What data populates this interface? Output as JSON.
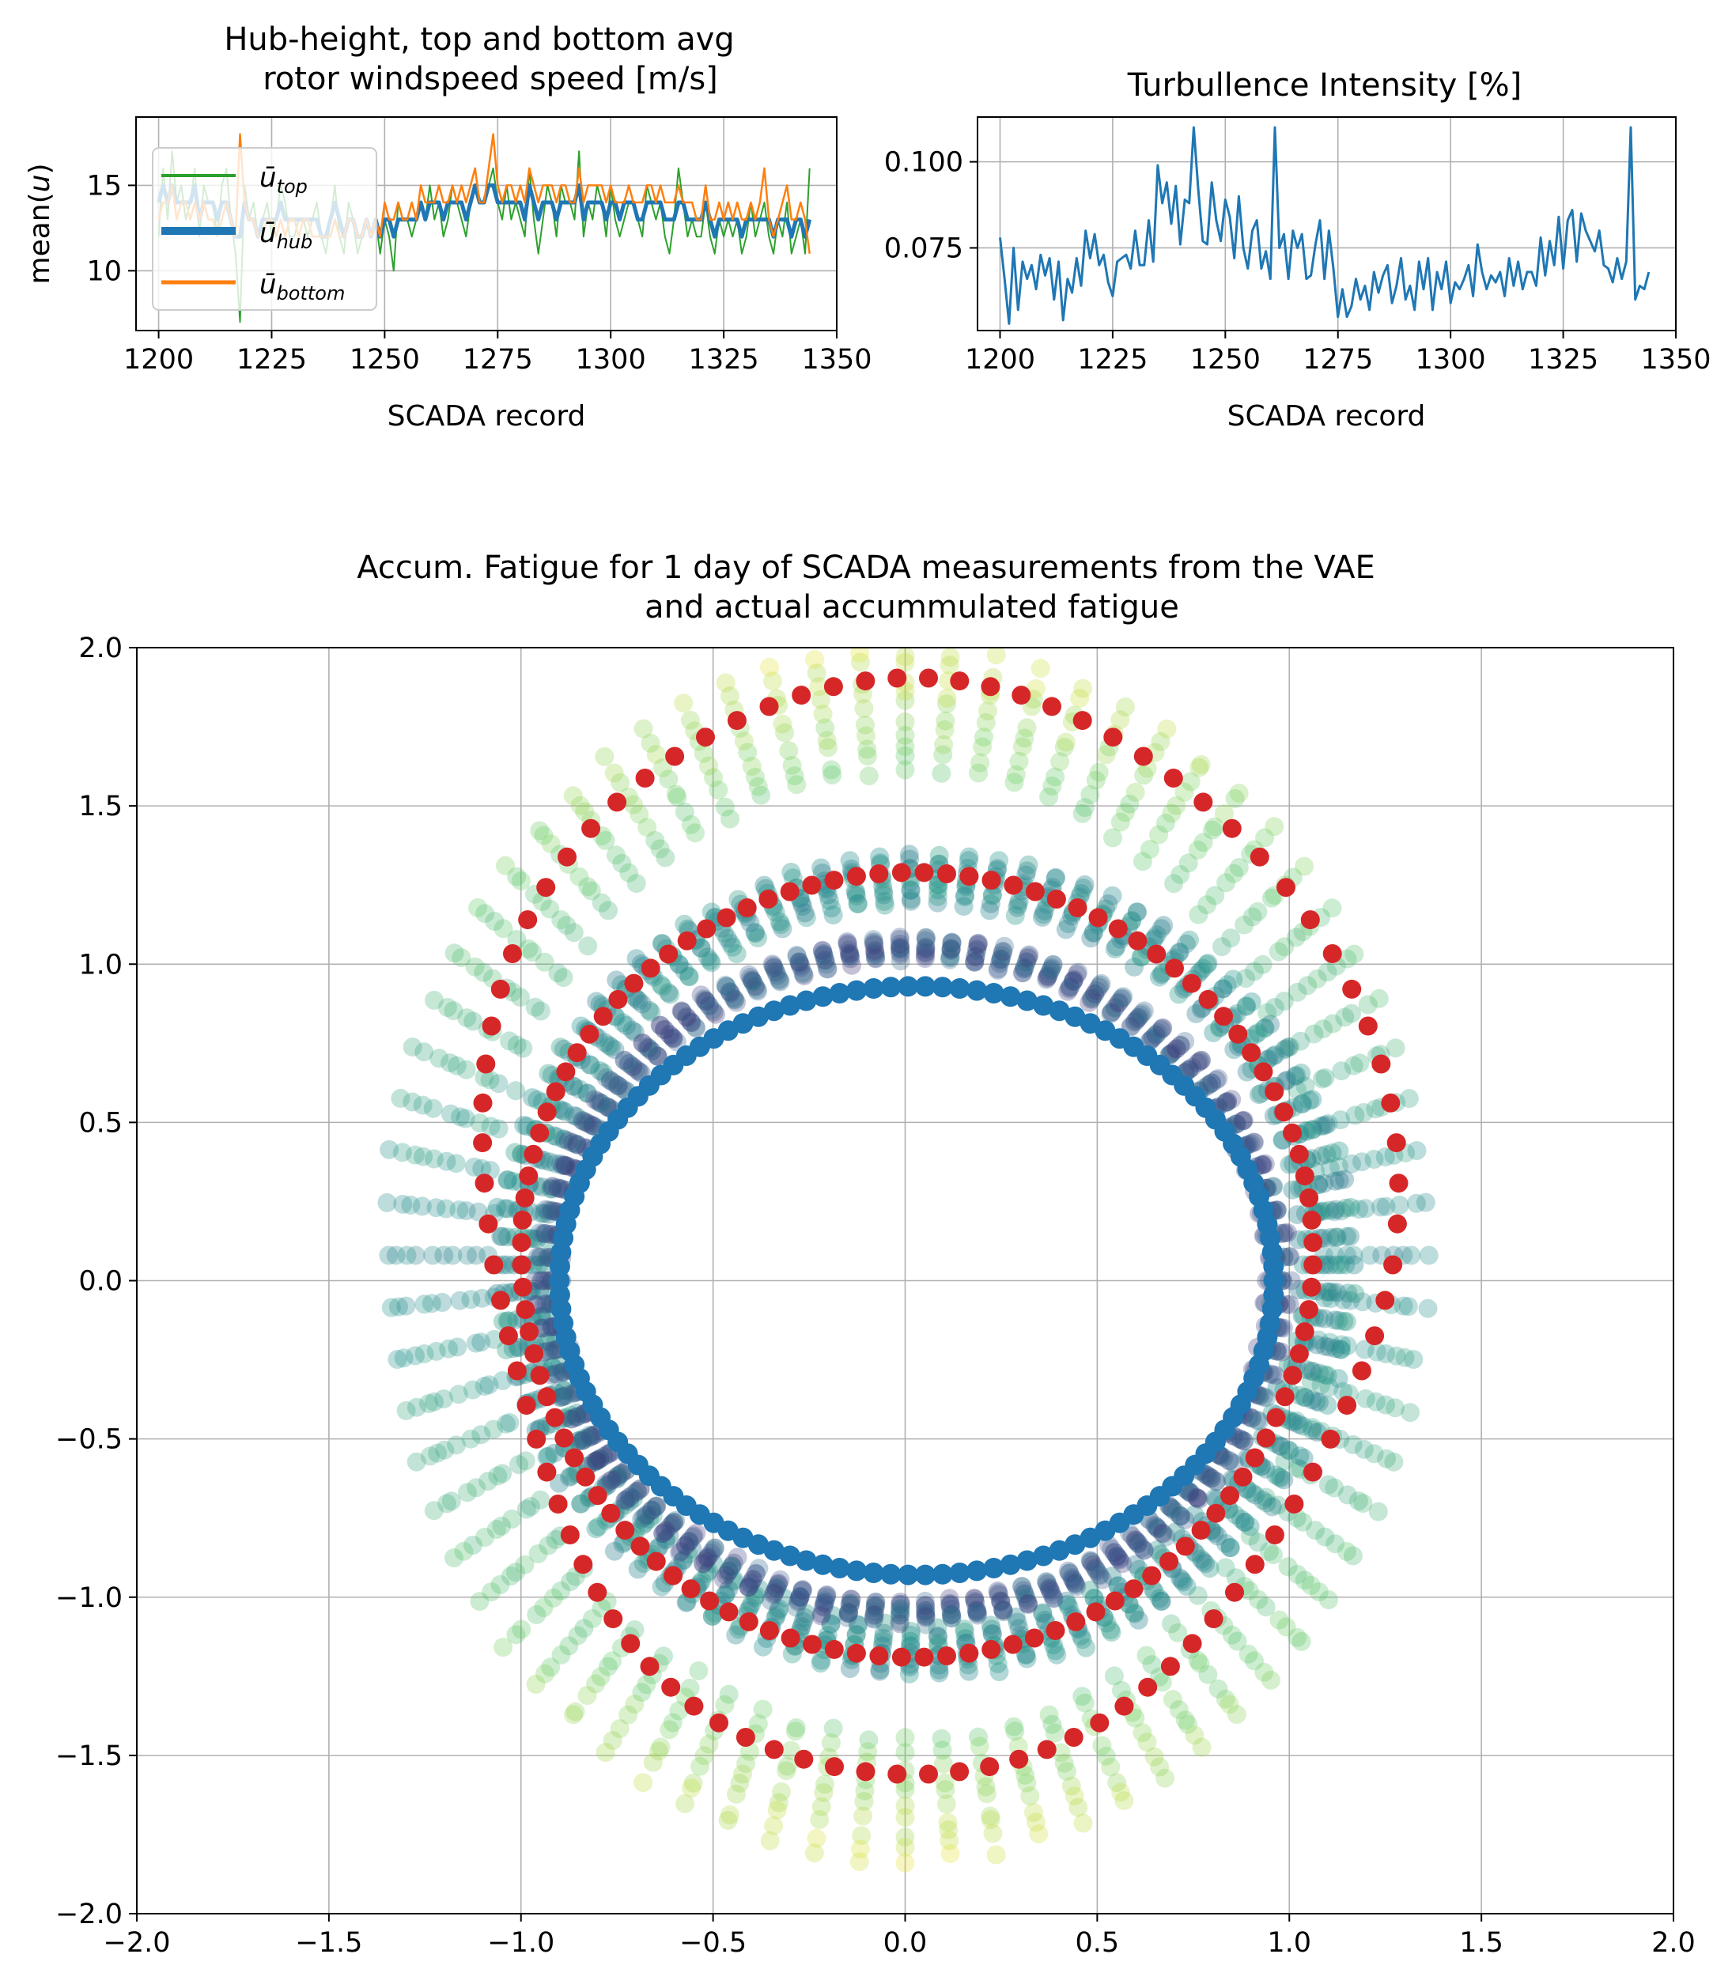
{
  "chart_data": [
    {
      "type": "line",
      "title": "Hub-height, top and bottom avg\nrotor windspeed speed [m/s]",
      "xlabel": "SCADA record",
      "ylabel": "mean(u)",
      "xlim": [
        1195,
        1350
      ],
      "ylim": [
        6.5,
        19
      ],
      "xticks": [
        1200,
        1225,
        1250,
        1275,
        1300,
        1325,
        1350
      ],
      "yticks": [
        10,
        15
      ],
      "grid": true,
      "legend": "upper-left",
      "x_start": 1200,
      "x_end": 1344,
      "series": [
        {
          "name": "ū_top",
          "color": "#2ca02c",
          "linewidth": 2,
          "values": [
            12,
            16,
            13,
            17,
            14,
            15,
            13,
            14,
            16,
            12,
            15,
            14,
            14,
            12,
            15,
            16,
            13,
            11,
            7,
            15,
            13,
            14,
            12,
            13,
            14,
            12,
            13,
            15,
            14,
            12,
            12,
            13,
            13,
            12,
            13,
            14,
            12,
            11,
            13,
            15,
            12,
            11,
            14,
            13,
            11,
            12,
            13,
            12,
            13,
            11,
            13,
            12,
            10,
            14,
            13,
            13,
            12,
            13,
            14,
            13,
            15,
            13,
            14,
            12,
            13,
            15,
            14,
            13,
            12,
            14,
            15,
            14,
            14,
            15,
            16,
            14,
            13,
            15,
            13,
            14,
            13,
            12,
            16,
            13,
            11,
            13,
            15,
            14,
            12,
            15,
            14,
            14,
            13,
            17,
            12,
            14,
            13,
            15,
            14,
            12,
            15,
            13,
            12,
            13,
            14,
            14,
            13,
            12,
            15,
            14,
            13,
            14,
            12,
            11,
            13,
            16,
            14,
            12,
            13,
            12,
            12,
            14,
            12,
            11,
            13,
            12,
            13,
            12,
            13,
            11,
            12,
            14,
            12,
            13,
            14,
            12,
            11,
            13,
            12,
            14,
            11,
            12,
            13,
            11,
            16
          ]
        },
        {
          "name": "ū_hub",
          "color": "#1f77b4",
          "linewidth": 5,
          "values": [
            14,
            15,
            14,
            15,
            14,
            14,
            14,
            14,
            15,
            13,
            14,
            14,
            14,
            13,
            14,
            14,
            13,
            12,
            12,
            14,
            13,
            13,
            12,
            13,
            13,
            13,
            13,
            14,
            13,
            13,
            13,
            13,
            13,
            13,
            13,
            13,
            12,
            12,
            13,
            14,
            13,
            12,
            13,
            13,
            12,
            12,
            13,
            12,
            13,
            12,
            13,
            13,
            12,
            13,
            13,
            13,
            13,
            13,
            14,
            13,
            14,
            14,
            14,
            13,
            14,
            14,
            14,
            14,
            13,
            14,
            15,
            14,
            14,
            15,
            15,
            14,
            14,
            14,
            14,
            14,
            14,
            13,
            15,
            14,
            13,
            14,
            14,
            14,
            13,
            14,
            14,
            14,
            14,
            15,
            13,
            14,
            14,
            14,
            14,
            13,
            14,
            14,
            13,
            14,
            14,
            14,
            13,
            13,
            14,
            14,
            14,
            14,
            13,
            13,
            13,
            14,
            14,
            13,
            13,
            13,
            13,
            14,
            13,
            12,
            13,
            13,
            13,
            13,
            13,
            12,
            13,
            13,
            13,
            13,
            13,
            13,
            12,
            13,
            13,
            13,
            12,
            13,
            13,
            12,
            13
          ]
        },
        {
          "name": "ū_bottom",
          "color": "#ff7f0e",
          "linewidth": 2.5,
          "values": [
            13,
            14,
            14,
            15,
            13,
            14,
            14,
            13,
            14,
            13,
            14,
            13,
            13,
            12,
            13,
            14,
            13,
            12,
            18,
            14,
            13,
            13,
            12,
            12,
            13,
            13,
            12,
            13,
            12,
            13,
            13,
            12,
            13,
            13,
            12,
            12,
            12,
            12,
            12,
            13,
            12,
            12,
            13,
            13,
            12,
            12,
            13,
            12,
            13,
            12,
            14,
            13,
            13,
            14,
            13,
            13,
            14,
            13,
            15,
            14,
            14,
            14,
            15,
            14,
            14,
            15,
            14,
            15,
            14,
            15,
            16,
            14,
            14,
            16,
            18,
            15,
            14,
            15,
            15,
            14,
            15,
            14,
            16,
            15,
            14,
            15,
            15,
            15,
            14,
            15,
            15,
            14,
            14,
            16,
            14,
            15,
            15,
            15,
            15,
            14,
            15,
            14,
            14,
            14,
            15,
            14,
            14,
            14,
            15,
            15,
            14,
            15,
            14,
            14,
            14,
            15,
            14,
            14,
            14,
            13,
            13,
            15,
            13,
            13,
            14,
            13,
            14,
            13,
            14,
            13,
            13,
            14,
            13,
            14,
            16,
            13,
            12,
            13,
            14,
            15,
            13,
            13,
            14,
            13,
            11
          ]
        }
      ]
    },
    {
      "type": "line",
      "title": "Turbullence Intensity [%]",
      "xlabel": "SCADA record",
      "ylabel": "",
      "xlim": [
        1195,
        1350
      ],
      "ylim": [
        0.051,
        0.113
      ],
      "xticks": [
        1200,
        1225,
        1250,
        1275,
        1300,
        1325,
        1350
      ],
      "yticks": [
        0.075,
        0.1
      ],
      "grid": true,
      "x_start": 1200,
      "x_end": 1344,
      "series": [
        {
          "color": "#1f77b4",
          "values": [
            0.078,
            0.066,
            0.053,
            0.075,
            0.057,
            0.071,
            0.066,
            0.07,
            0.063,
            0.073,
            0.067,
            0.072,
            0.06,
            0.071,
            0.054,
            0.066,
            0.062,
            0.072,
            0.064,
            0.08,
            0.072,
            0.079,
            0.07,
            0.073,
            0.065,
            0.061,
            0.071,
            0.072,
            0.073,
            0.069,
            0.08,
            0.07,
            0.07,
            0.083,
            0.071,
            0.099,
            0.088,
            0.094,
            0.082,
            0.093,
            0.076,
            0.089,
            0.088,
            0.11,
            0.092,
            0.077,
            0.076,
            0.094,
            0.083,
            0.077,
            0.089,
            0.084,
            0.072,
            0.09,
            0.075,
            0.069,
            0.08,
            0.083,
            0.069,
            0.074,
            0.066,
            0.11,
            0.075,
            0.079,
            0.066,
            0.08,
            0.075,
            0.079,
            0.066,
            0.067,
            0.076,
            0.083,
            0.066,
            0.08,
            0.069,
            0.055,
            0.063,
            0.055,
            0.058,
            0.066,
            0.06,
            0.064,
            0.057,
            0.068,
            0.062,
            0.067,
            0.07,
            0.059,
            0.064,
            0.072,
            0.06,
            0.064,
            0.057,
            0.071,
            0.063,
            0.072,
            0.057,
            0.068,
            0.063,
            0.071,
            0.059,
            0.065,
            0.063,
            0.066,
            0.07,
            0.061,
            0.076,
            0.068,
            0.063,
            0.067,
            0.065,
            0.068,
            0.061,
            0.072,
            0.064,
            0.071,
            0.063,
            0.068,
            0.068,
            0.064,
            0.078,
            0.067,
            0.077,
            0.07,
            0.084,
            0.069,
            0.083,
            0.086,
            0.071,
            0.085,
            0.08,
            0.077,
            0.074,
            0.08,
            0.07,
            0.069,
            0.065,
            0.072,
            0.066,
            0.071,
            0.11,
            0.06,
            0.064,
            0.063,
            0.068
          ]
        }
      ]
    },
    {
      "type": "scatter",
      "title": "Accum. Fatigue for 1 day of SCADA measurements from the VAE\nand actual accummulated fatigue",
      "xlabel": "",
      "ylabel": "",
      "xlim": [
        -2.0,
        2.0
      ],
      "ylim": [
        -2.0,
        2.0
      ],
      "xticks": [
        -2.0,
        -1.5,
        -1.0,
        -0.5,
        0.0,
        0.5,
        1.0,
        1.5,
        2.0
      ],
      "yticks": [
        -2.0,
        -1.5,
        -1.0,
        -0.5,
        0.0,
        0.5,
        1.0,
        1.5,
        2.0
      ],
      "tick_labels": [
        "−2.0",
        "−1.5",
        "−1.0",
        "−0.5",
        "0.0",
        "0.5",
        "1.0",
        "1.5",
        "2.0"
      ],
      "grid": true,
      "rings": [
        {
          "role": "vae-samples-outer",
          "cx": 0.0,
          "cy": 0.08,
          "rx": 1.22,
          "ry": 1.72,
          "n": 72,
          "spread": 0.22,
          "colormap": "viridis",
          "alpha": 0.3
        },
        {
          "role": "vae-samples-mid",
          "cx": 0.05,
          "cy": 0.05,
          "rx": 1.05,
          "ry": 1.22,
          "n": 90,
          "spread": 0.12,
          "colormap": "viridis",
          "alpha": 0.35
        },
        {
          "role": "vae-samples-inner",
          "cx": 0.02,
          "cy": 0.0,
          "rx": 0.95,
          "ry": 1.05,
          "n": 90,
          "spread": 0.06,
          "colormap": "viridis-dark",
          "alpha": 0.3
        }
      ],
      "red_series": [
        {
          "color": "#d62728",
          "cx": 0.02,
          "cy": 0.05,
          "rx": 1.17,
          "ry": 1.75,
          "wobble": 0.12,
          "n": 90
        },
        {
          "color": "#d62728",
          "cx": 0.02,
          "cy": 0.05,
          "rx": 1.03,
          "ry": 1.24,
          "wobble": 0.02,
          "n": 110
        }
      ],
      "blue_series": {
        "color": "#1f77b4",
        "cx": 0.03,
        "cy": 0.0,
        "rx": 0.93,
        "ry": 0.93,
        "n": 130
      }
    }
  ]
}
